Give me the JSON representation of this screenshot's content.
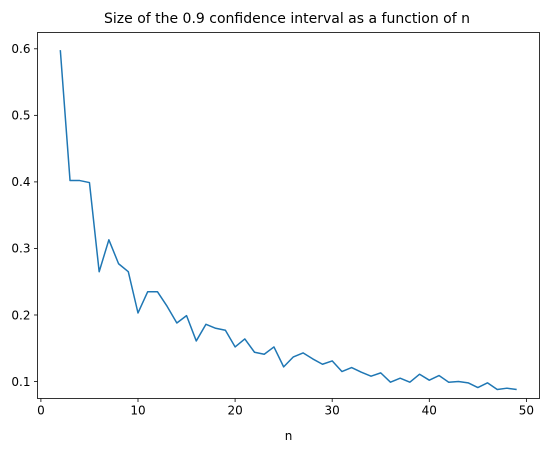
{
  "chart_data": {
    "type": "line",
    "title": "Size of the 0.9 confidence interval as a function of n",
    "xlabel": "n",
    "ylabel": "",
    "xlim": [
      -0.35,
      51.35
    ],
    "ylim": [
      0.0745,
      0.6245
    ],
    "xticks": [
      0,
      10,
      20,
      30,
      40,
      50
    ],
    "yticks": [
      0.1,
      0.2,
      0.3,
      0.4,
      0.5,
      0.6
    ],
    "xtick_labels": [
      "0",
      "10",
      "20",
      "30",
      "40",
      "50"
    ],
    "ytick_labels": [
      "0.1",
      "0.2",
      "0.3",
      "0.4",
      "0.5",
      "0.6"
    ],
    "grid": false,
    "legend": "none",
    "series": [
      {
        "color": "#1f77b4",
        "x": [
          2,
          3,
          4,
          5,
          6,
          7,
          8,
          9,
          10,
          11,
          12,
          13,
          14,
          15,
          16,
          17,
          18,
          19,
          20,
          21,
          22,
          23,
          24,
          25,
          26,
          27,
          28,
          29,
          30,
          31,
          32,
          33,
          34,
          35,
          36,
          37,
          38,
          39,
          40,
          41,
          42,
          43,
          44,
          45,
          46,
          47,
          48,
          49
        ],
        "values": [
          0.598,
          0.402,
          0.402,
          0.399,
          0.265,
          0.313,
          0.277,
          0.265,
          0.203,
          0.235,
          0.235,
          0.213,
          0.188,
          0.199,
          0.161,
          0.186,
          0.18,
          0.177,
          0.152,
          0.164,
          0.144,
          0.141,
          0.152,
          0.122,
          0.137,
          0.143,
          0.134,
          0.126,
          0.131,
          0.115,
          0.121,
          0.114,
          0.108,
          0.113,
          0.099,
          0.105,
          0.099,
          0.111,
          0.102,
          0.109,
          0.099,
          0.1,
          0.098,
          0.091,
          0.098,
          0.088,
          0.09,
          0.088
        ]
      }
    ]
  }
}
